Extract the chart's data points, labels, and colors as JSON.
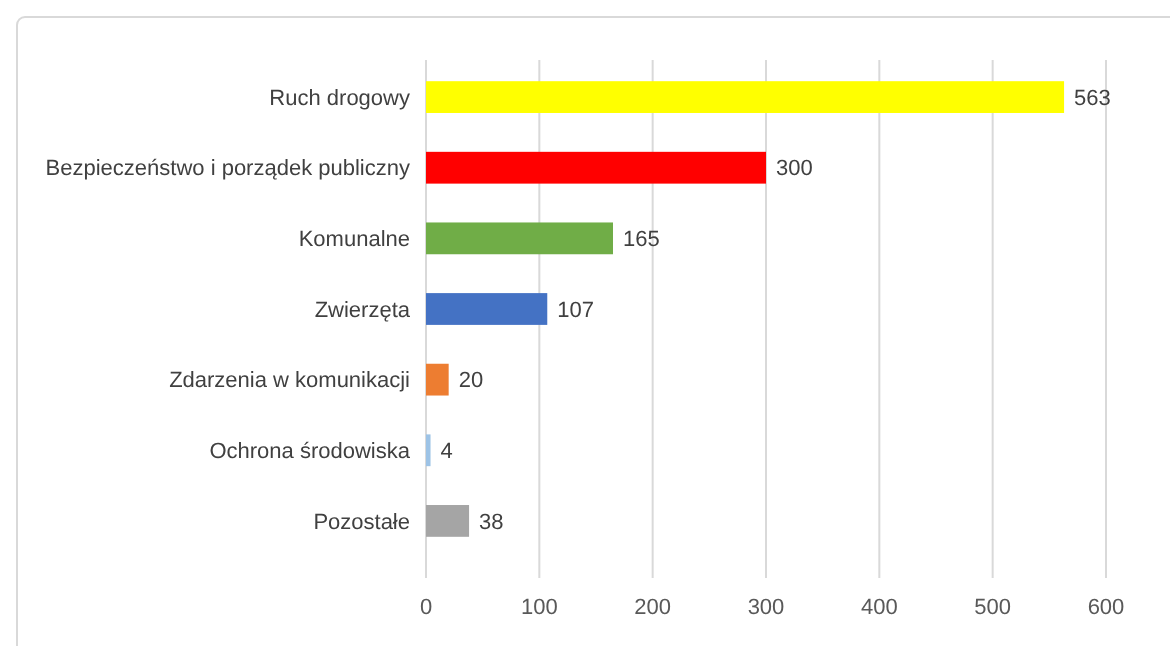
{
  "chart_data": {
    "type": "bar",
    "orientation": "horizontal",
    "categories": [
      "Ruch drogowy",
      "Bezpieczeństwo i porządek publiczny",
      "Komunalne",
      "Zwierzęta",
      "Zdarzenia w komunikacji",
      "Ochrona środowiska",
      "Pozostałe"
    ],
    "values": [
      563,
      300,
      165,
      107,
      20,
      4,
      38
    ],
    "colors": [
      "#ffff00",
      "#ff0000",
      "#70ad47",
      "#4472c4",
      "#ed7d31",
      "#9dc3e6",
      "#a5a5a5"
    ],
    "xlim": [
      0,
      600
    ],
    "xticks": [
      0,
      100,
      200,
      300,
      400,
      500,
      600
    ],
    "grid": "x",
    "data_labels": true
  }
}
